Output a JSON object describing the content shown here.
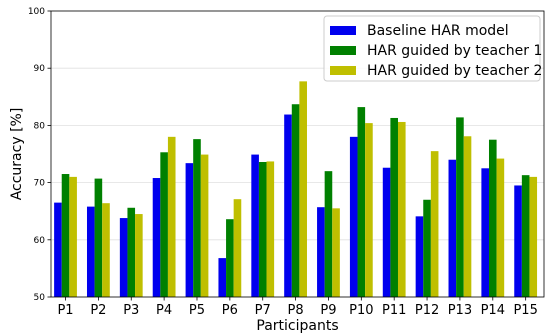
{
  "chart_data": {
    "type": "bar",
    "title": "",
    "xlabel": "Participants",
    "ylabel": "Accuracy [%]",
    "ylim": [
      50,
      100
    ],
    "yticks": [
      50,
      60,
      70,
      80,
      90,
      100
    ],
    "grid": "horizontal",
    "legend_position": "top-right",
    "categories": [
      "P1",
      "P2",
      "P3",
      "P4",
      "P5",
      "P6",
      "P7",
      "P8",
      "P9",
      "P10",
      "P11",
      "P12",
      "P13",
      "P14",
      "P15"
    ],
    "series": [
      {
        "name": "Baseline HAR model",
        "color": "#0000ee",
        "values": [
          66.5,
          65.8,
          63.8,
          70.8,
          73.4,
          56.8,
          74.9,
          81.9,
          65.7,
          78.0,
          72.6,
          64.1,
          74.0,
          72.5,
          69.5
        ]
      },
      {
        "name": "HAR guided by teacher 1",
        "color": "#008000",
        "values": [
          71.5,
          70.7,
          65.6,
          75.3,
          77.6,
          63.6,
          73.6,
          83.7,
          72.0,
          83.2,
          81.3,
          67.0,
          81.4,
          77.5,
          71.3
        ]
      },
      {
        "name": "HAR guided by teacher 2",
        "color": "#bfbf00",
        "values": [
          71.0,
          66.4,
          64.5,
          78.0,
          74.9,
          67.1,
          73.7,
          87.7,
          65.5,
          80.4,
          80.6,
          75.5,
          78.1,
          74.2,
          71.0
        ]
      }
    ]
  }
}
